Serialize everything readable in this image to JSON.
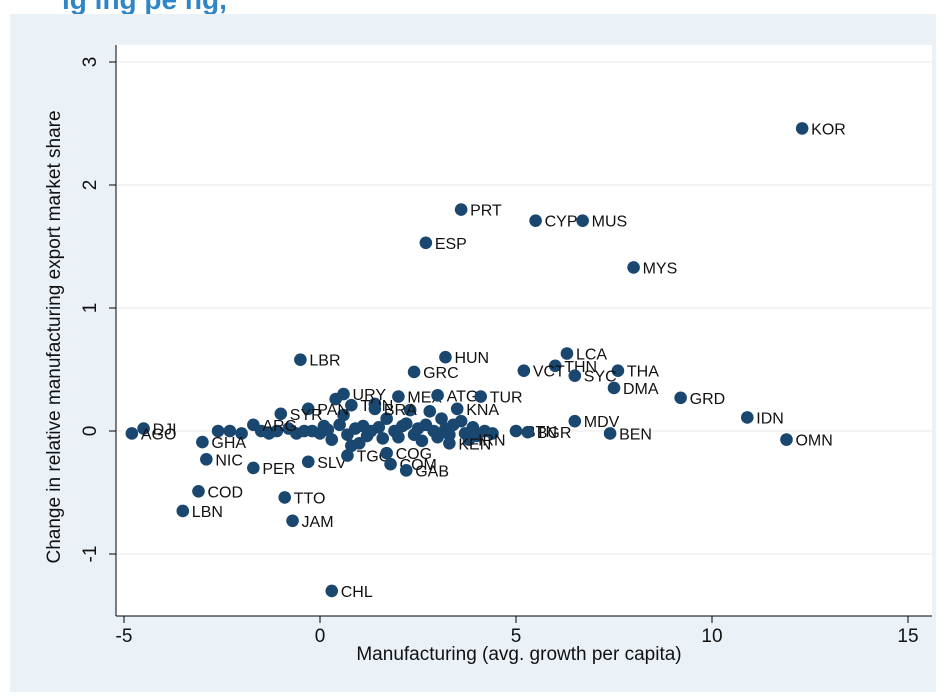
{
  "heading": "ig                            ing pe                             ng,",
  "chart_data": {
    "type": "scatter",
    "xlabel": "Manufacturing (avg. growth per capita)",
    "ylabel": "Change in relative manufacturing export market share",
    "xlim": [
      -5,
      15
    ],
    "ylim": [
      -1.3,
      3
    ],
    "xticks": [
      "-5",
      "0",
      "5",
      "10",
      "15"
    ],
    "yticks": [
      "-1",
      "0",
      "1",
      "2",
      "3"
    ],
    "grid": "horizontal",
    "colors": {
      "marker": "#1a476f",
      "grid": "#eaeaea",
      "background": "#eaf2f8"
    },
    "points": [
      {
        "label": "KOR",
        "x": 12.3,
        "y": 2.46
      },
      {
        "label": "PRT",
        "x": 3.6,
        "y": 1.8
      },
      {
        "label": "CYP",
        "x": 5.5,
        "y": 1.71
      },
      {
        "label": "MUS",
        "x": 6.7,
        "y": 1.71
      },
      {
        "label": "ESP",
        "x": 2.7,
        "y": 1.53
      },
      {
        "label": "MYS",
        "x": 8.0,
        "y": 1.33
      },
      {
        "label": "LCA",
        "x": 6.3,
        "y": 0.63
      },
      {
        "label": "HUN",
        "x": 3.2,
        "y": 0.6
      },
      {
        "label": "LBR",
        "x": -0.5,
        "y": 0.58
      },
      {
        "label": "THN",
        "x": 6.0,
        "y": 0.53
      },
      {
        "label": "VCT",
        "x": 5.2,
        "y": 0.49
      },
      {
        "label": "THA",
        "x": 7.6,
        "y": 0.49
      },
      {
        "label": "GRC",
        "x": 2.4,
        "y": 0.48
      },
      {
        "label": "SYC",
        "x": 6.5,
        "y": 0.45
      },
      {
        "label": "DMA",
        "x": 7.5,
        "y": 0.35
      },
      {
        "label": "URY",
        "x": 0.6,
        "y": 0.3
      },
      {
        "label": "MEX",
        "x": 2.0,
        "y": 0.28
      },
      {
        "label": "ATG",
        "x": 3.0,
        "y": 0.29
      },
      {
        "label": "TUR",
        "x": 4.1,
        "y": 0.28
      },
      {
        "label": "GRD",
        "x": 9.2,
        "y": 0.27
      },
      {
        "label": "PAN",
        "x": -0.3,
        "y": 0.18
      },
      {
        "label": "SYR",
        "x": -1.0,
        "y": 0.14
      },
      {
        "label": "KNA",
        "x": 3.5,
        "y": 0.18
      },
      {
        "label": "IDN",
        "x": 10.9,
        "y": 0.11
      },
      {
        "label": "MDV",
        "x": 6.5,
        "y": 0.08
      },
      {
        "label": "TUN",
        "x": 0.8,
        "y": 0.21
      },
      {
        "label": "BRA",
        "x": 1.4,
        "y": 0.18
      },
      {
        "label": "DJI",
        "x": -4.5,
        "y": 0.02
      },
      {
        "label": "AGO",
        "x": -4.8,
        "y": -0.02
      },
      {
        "label": "ARG",
        "x": -1.7,
        "y": 0.05
      },
      {
        "label": "BTN",
        "x": 5.0,
        "y": 0.0
      },
      {
        "label": "BGR",
        "x": 5.3,
        "y": -0.01
      },
      {
        "label": "BEN",
        "x": 7.4,
        "y": -0.02
      },
      {
        "label": "OMN",
        "x": 11.9,
        "y": -0.07
      },
      {
        "label": "GHA",
        "x": -3.0,
        "y": -0.09
      },
      {
        "label": "IRN",
        "x": 3.8,
        "y": -0.07
      },
      {
        "label": "KEN",
        "x": 3.3,
        "y": -0.1
      },
      {
        "label": "NIC",
        "x": -2.9,
        "y": -0.23
      },
      {
        "label": "PER",
        "x": -1.7,
        "y": -0.3
      },
      {
        "label": "SLV",
        "x": -0.3,
        "y": -0.25
      },
      {
        "label": "TGO",
        "x": 0.7,
        "y": -0.2
      },
      {
        "label": "COG",
        "x": 1.7,
        "y": -0.18
      },
      {
        "label": "COM",
        "x": 1.8,
        "y": -0.27
      },
      {
        "label": "GAB",
        "x": 2.2,
        "y": -0.32
      },
      {
        "label": "COD",
        "x": -3.1,
        "y": -0.49
      },
      {
        "label": "TTO",
        "x": -0.9,
        "y": -0.54
      },
      {
        "label": "LBN",
        "x": -3.5,
        "y": -0.65
      },
      {
        "label": "JAM",
        "x": -0.7,
        "y": -0.73
      },
      {
        "label": "CHL",
        "x": 0.3,
        "y": -1.3
      }
    ],
    "extra_points": [
      {
        "x": -2.6,
        "y": 0.0
      },
      {
        "x": -2.3,
        "y": 0.0
      },
      {
        "x": -2.0,
        "y": -0.02
      },
      {
        "x": -1.5,
        "y": 0.0
      },
      {
        "x": -1.3,
        "y": -0.02
      },
      {
        "x": -1.1,
        "y": 0.0
      },
      {
        "x": -0.8,
        "y": 0.02
      },
      {
        "x": -0.6,
        "y": -0.02
      },
      {
        "x": -0.4,
        "y": 0.0
      },
      {
        "x": -0.2,
        "y": 0.0
      },
      {
        "x": 0.0,
        "y": -0.02
      },
      {
        "x": 0.2,
        "y": 0.01
      },
      {
        "x": 0.3,
        "y": -0.07
      },
      {
        "x": 0.4,
        "y": 0.26
      },
      {
        "x": 0.5,
        "y": 0.05
      },
      {
        "x": 0.6,
        "y": 0.13
      },
      {
        "x": 0.7,
        "y": -0.03
      },
      {
        "x": 0.9,
        "y": 0.02
      },
      {
        "x": 1.0,
        "y": -0.1
      },
      {
        "x": 1.1,
        "y": 0.04
      },
      {
        "x": 1.2,
        "y": -0.04
      },
      {
        "x": 1.3,
        "y": 0.0
      },
      {
        "x": 1.5,
        "y": 0.03
      },
      {
        "x": 1.6,
        "y": -0.06
      },
      {
        "x": 1.7,
        "y": 0.1
      },
      {
        "x": 1.9,
        "y": 0.0
      },
      {
        "x": 2.0,
        "y": -0.05
      },
      {
        "x": 2.1,
        "y": 0.04
      },
      {
        "x": 2.3,
        "y": 0.17
      },
      {
        "x": 2.4,
        "y": -0.03
      },
      {
        "x": 2.5,
        "y": 0.02
      },
      {
        "x": 2.6,
        "y": -0.08
      },
      {
        "x": 2.7,
        "y": 0.05
      },
      {
        "x": 2.8,
        "y": 0.16
      },
      {
        "x": 2.9,
        "y": 0.0
      },
      {
        "x": 3.0,
        "y": -0.05
      },
      {
        "x": 3.1,
        "y": 0.1
      },
      {
        "x": 3.2,
        "y": 0.02
      },
      {
        "x": 3.3,
        "y": -0.03
      },
      {
        "x": 3.4,
        "y": 0.05
      },
      {
        "x": 3.6,
        "y": 0.08
      },
      {
        "x": 3.7,
        "y": -0.02
      },
      {
        "x": 3.9,
        "y": 0.03
      },
      {
        "x": 4.0,
        "y": -0.04
      },
      {
        "x": 4.2,
        "y": 0.0
      },
      {
        "x": 4.4,
        "y": -0.02
      },
      {
        "x": 0.8,
        "y": -0.12
      },
      {
        "x": 1.4,
        "y": 0.22
      },
      {
        "x": 2.2,
        "y": 0.06
      },
      {
        "x": 0.1,
        "y": 0.04
      }
    ]
  }
}
